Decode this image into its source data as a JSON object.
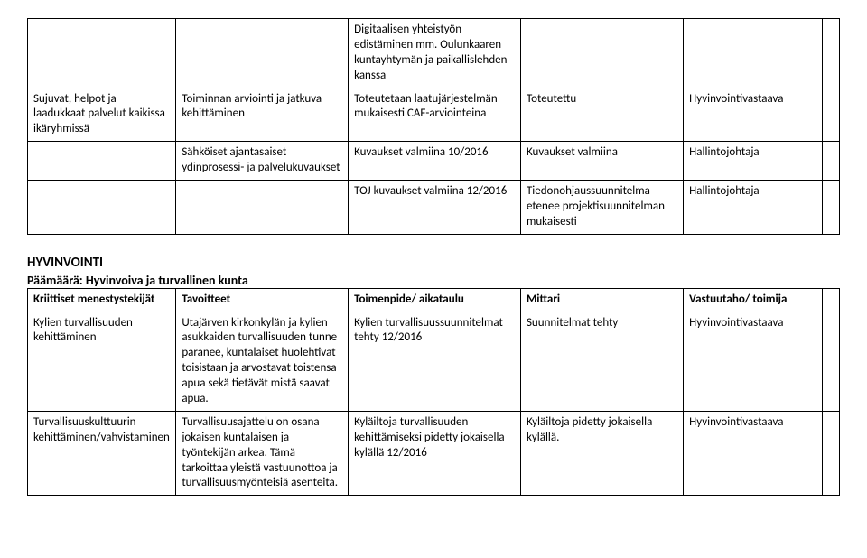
{
  "table1": {
    "rows": [
      {
        "c1": "",
        "c2": "",
        "c3": "Digitaalisen yhteistyön edistäminen mm. Oulunkaaren kuntayhtymän ja paikallislehden kanssa",
        "c4": "",
        "c5": "",
        "c6": ""
      },
      {
        "c1": "Sujuvat, helpot ja laadukkaat palvelut kaikissa ikäryhmissä",
        "c2": "Toiminnan arviointi ja jatkuva kehittäminen",
        "c3": "Toteutetaan laatujärjestelmän mukaisesti CAF-arviointeina",
        "c4": "Toteutettu",
        "c5": "Hyvinvointivastaava",
        "c6": ""
      },
      {
        "c1": "",
        "c2": "Sähköiset ajantasaiset ydinprosessi- ja palvelukuvaukset",
        "c3": "Kuvaukset valmiina 10/2016",
        "c4": "Kuvaukset valmiina",
        "c5": "Hallintojohtaja",
        "c6": ""
      },
      {
        "c1": "",
        "c2": "",
        "c3": "TOJ kuvaukset valmiina 12/2016",
        "c4": "Tiedonohjaussuunnitelma etenee projektisuunnitelman mukaisesti",
        "c5": "Hallintojohtaja",
        "c6": ""
      }
    ]
  },
  "section2": {
    "heading": "HYVINVOINTI",
    "subheading": "Päämäärä: Hyvinvoiva ja turvallinen kunta",
    "headers": {
      "h1": "Kriittiset menestystekijät",
      "h2": "Tavoitteet",
      "h3": "Toimenpide/ aikataulu",
      "h4": "Mittari",
      "h5": "Vastuutaho/ toimija",
      "h6": ""
    },
    "rows": [
      {
        "c1": "Kylien turvallisuuden kehittäminen",
        "c2": "Utajärven kirkonkylän ja kylien asukkaiden turvallisuuden tunne paranee, kuntalaiset huolehtivat toisistaan ja arvostavat toistensa apua sekä tietävät mistä saavat apua.",
        "c3": "Kylien turvallisuussuunnitelmat tehty 12/2016",
        "c4": "Suunnitelmat tehty",
        "c5": "Hyvinvointivastaava",
        "c6": ""
      },
      {
        "c1": "Turvallisuuskulttuurin kehittäminen/vahvistaminen",
        "c2": "Turvallisuusajattelu on osana jokaisen kuntalaisen ja työntekijän arkea. Tämä tarkoittaa yleistä vastuunottoa ja turvallisuusmyönteisiä asenteita.",
        "c3": "Kyläiltoja turvallisuuden kehittämiseksi pidetty jokaisella kylällä 12/2016",
        "c4": "Kyläiltoja pidetty jokaisella kylällä.",
        "c5": "Hyvinvointivastaava",
        "c6": ""
      }
    ]
  }
}
